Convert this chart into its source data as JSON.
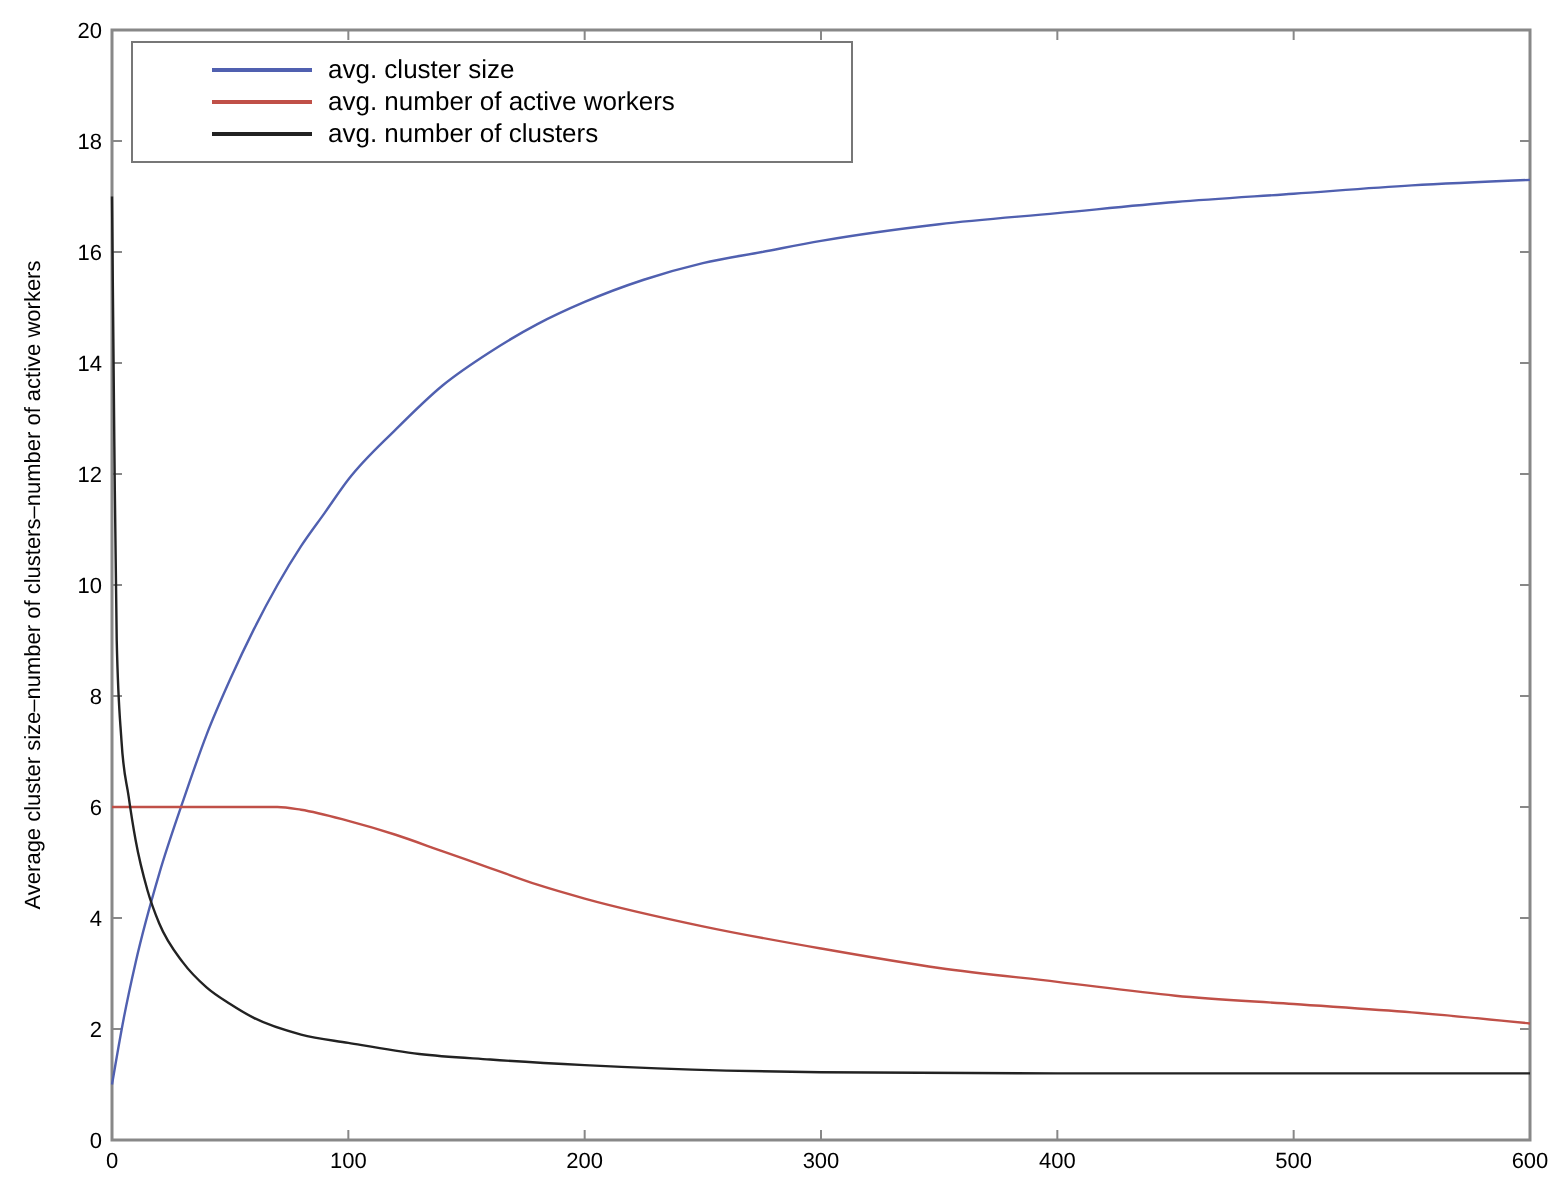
{
  "chart_data": {
    "type": "line",
    "ylabel": "Average cluster size–number of clusters–number of active workers",
    "xlim": [
      0,
      600
    ],
    "ylim": [
      0,
      20
    ],
    "xticks": [
      0,
      100,
      200,
      300,
      400,
      500,
      600
    ],
    "yticks": [
      0,
      2,
      4,
      6,
      8,
      10,
      12,
      14,
      16,
      18,
      20
    ],
    "legend": "top left",
    "grid": false,
    "line_style": "solid",
    "marker": "none",
    "series": [
      {
        "name": "avg. cluster size",
        "color": "#5060b0",
        "x": [
          0,
          5,
          10,
          20,
          30,
          40,
          50,
          60,
          70,
          80,
          90,
          100,
          120,
          140,
          160,
          180,
          200,
          225,
          250,
          275,
          300,
          350,
          400,
          450,
          500,
          550,
          600
        ],
        "values": [
          1,
          2.2,
          3.2,
          4.8,
          6.1,
          7.3,
          8.3,
          9.2,
          10,
          10.7,
          11.3,
          11.9,
          12.8,
          13.6,
          14.2,
          14.7,
          15.1,
          15.5,
          15.8,
          16,
          16.2,
          16.5,
          16.7,
          16.9,
          17.05,
          17.2,
          17.3
        ]
      },
      {
        "name": "avg. number of active workers",
        "color": "#c05048",
        "x": [
          0,
          20,
          40,
          60,
          70,
          80,
          100,
          120,
          140,
          160,
          180,
          200,
          250,
          300,
          350,
          400,
          450,
          500,
          550,
          600
        ],
        "values": [
          6,
          6,
          6,
          6,
          6,
          5.95,
          5.75,
          5.5,
          5.2,
          4.9,
          4.6,
          4.35,
          3.85,
          3.45,
          3.1,
          2.85,
          2.6,
          2.45,
          2.3,
          2.1
        ]
      },
      {
        "name": "avg. number of clusters",
        "color": "#222222",
        "x": [
          0,
          1,
          2,
          4,
          7,
          10,
          15,
          20,
          30,
          40,
          50,
          60,
          80,
          100,
          130,
          160,
          200,
          260,
          300,
          400,
          500,
          600
        ],
        "values": [
          17,
          12.5,
          9,
          7.2,
          6.2,
          5.4,
          4.5,
          3.9,
          3.2,
          2.75,
          2.45,
          2.2,
          1.9,
          1.75,
          1.55,
          1.45,
          1.35,
          1.25,
          1.22,
          1.2,
          1.2,
          1.2
        ]
      }
    ]
  }
}
